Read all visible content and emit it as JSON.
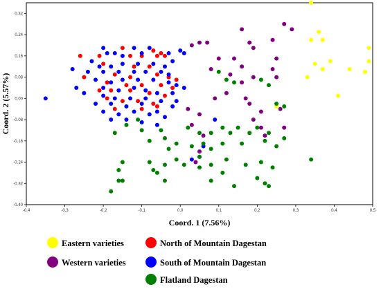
{
  "chart_data": {
    "type": "scatter",
    "title": "",
    "xlabel": "Coord. 1 (7.56%)",
    "ylabel": "Coord. 2 (5.57%)",
    "xlim": [
      -0.4,
      0.5
    ],
    "ylim": [
      -0.4,
      0.36
    ],
    "x_ticks": [
      "-0.4",
      "-0.3",
      "-0.2",
      "-0.1",
      "0.0",
      "0.1",
      "0.2",
      "0.3",
      "0.4",
      "0.5"
    ],
    "y_ticks": [
      "0.32",
      "0.24",
      "0.16",
      "0.08",
      "0.00",
      "-0.08",
      "-0.16",
      "-0.24",
      "-0.32",
      "-0.40"
    ],
    "x_tick_values": [
      -0.4,
      -0.3,
      -0.2,
      -0.1,
      0.0,
      0.1,
      0.2,
      0.3,
      0.4,
      0.5
    ],
    "y_tick_values": [
      0.32,
      0.24,
      0.16,
      0.08,
      0.0,
      -0.08,
      -0.16,
      -0.24,
      -0.32,
      -0.4
    ],
    "grid": false,
    "legend_placement": "bottom",
    "series": [
      {
        "name": "Eastern varieties",
        "color": "#ffff00",
        "points": [
          [
            0.34,
            0.36
          ],
          [
            0.36,
            0.25
          ],
          [
            0.34,
            0.22
          ],
          [
            0.37,
            0.22
          ],
          [
            0.49,
            0.19
          ],
          [
            0.39,
            0.14
          ],
          [
            0.35,
            0.13
          ],
          [
            0.49,
            0.14
          ],
          [
            0.44,
            0.11
          ],
          [
            0.48,
            0.1
          ],
          [
            0.37,
            0.11
          ],
          [
            0.33,
            0.08
          ],
          [
            0.41,
            0.01
          ],
          [
            0.25,
            -0.03
          ]
        ]
      },
      {
        "name": "Western varieties",
        "color": "#800080",
        "points": [
          [
            0.27,
            0.28
          ],
          [
            0.16,
            0.26
          ],
          [
            0.24,
            0.22
          ],
          [
            0.29,
            0.26
          ],
          [
            0.18,
            0.21
          ],
          [
            0.19,
            0.19
          ],
          [
            0.07,
            0.21
          ],
          [
            0.03,
            0.2
          ],
          [
            0.05,
            0.21
          ],
          [
            0.14,
            0.15
          ],
          [
            0.1,
            0.15
          ],
          [
            0.16,
            0.12
          ],
          [
            0.25,
            0.15
          ],
          [
            0.08,
            0.11
          ],
          [
            0.13,
            0.09
          ],
          [
            0.19,
            0.08
          ],
          [
            0.24,
            0.11
          ],
          [
            0.25,
            0.08
          ],
          [
            0.16,
            0.06
          ],
          [
            0.12,
            0.02
          ],
          [
            0.17,
            0.0
          ],
          [
            0.09,
            0.0
          ],
          [
            0.18,
            -0.02
          ],
          [
            0.21,
            -0.05
          ],
          [
            0.26,
            -0.04
          ],
          [
            0.05,
            -0.06
          ],
          [
            0.02,
            -0.04
          ],
          [
            0.03,
            -0.1
          ],
          [
            0.19,
            -0.08
          ],
          [
            0.21,
            -0.11
          ],
          [
            0.22,
            -0.14
          ],
          [
            0.27,
            -0.11
          ],
          [
            0.06,
            -0.14
          ],
          [
            0.05,
            -0.2
          ],
          [
            0.04,
            -0.24
          ],
          [
            0.05,
            -0.22
          ]
        ]
      },
      {
        "name": "North of Mountain Dagestan",
        "color": "#ff0000",
        "points": [
          [
            -0.15,
            0.19
          ],
          [
            -0.07,
            0.18
          ],
          [
            -0.05,
            0.17
          ],
          [
            -0.26,
            0.16
          ],
          [
            -0.21,
            0.16
          ],
          [
            -0.13,
            0.16
          ],
          [
            -0.1,
            0.16
          ],
          [
            -0.06,
            0.16
          ],
          [
            -0.04,
            0.16
          ],
          [
            -0.2,
            0.13
          ],
          [
            -0.12,
            0.12
          ],
          [
            -0.08,
            0.12
          ],
          [
            -0.25,
            0.08
          ],
          [
            -0.17,
            0.09
          ],
          [
            -0.13,
            0.08
          ],
          [
            -0.06,
            0.09
          ],
          [
            -0.03,
            0.08
          ],
          [
            -0.01,
            0.07
          ],
          [
            -0.19,
            0.06
          ],
          [
            -0.14,
            0.05
          ],
          [
            -0.1,
            0.05
          ],
          [
            -0.05,
            0.05
          ],
          [
            -0.02,
            0.04
          ],
          [
            -0.21,
            0.03
          ],
          [
            -0.18,
            0.03
          ],
          [
            -0.13,
            0.03
          ],
          [
            -0.08,
            0.02
          ],
          [
            -0.04,
            0.01
          ],
          [
            -0.19,
            0.0
          ],
          [
            -0.15,
            -0.01
          ],
          [
            -0.11,
            -0.01
          ],
          [
            -0.07,
            -0.02
          ],
          [
            -0.1,
            -0.04
          ],
          [
            -0.06,
            -0.03
          ],
          [
            -0.17,
            -0.04
          ]
        ]
      },
      {
        "name": "South of Mountain Dagestan",
        "color": "#0000ff",
        "points": [
          [
            -0.2,
            0.19
          ],
          [
            -0.19,
            0.17
          ],
          [
            -0.17,
            0.17
          ],
          [
            -0.15,
            0.16
          ],
          [
            -0.12,
            0.19
          ],
          [
            -0.1,
            0.17
          ],
          [
            -0.08,
            0.19
          ],
          [
            -0.03,
            0.17
          ],
          [
            0.01,
            0.17
          ],
          [
            0.0,
            0.18
          ],
          [
            -0.23,
            0.14
          ],
          [
            -0.21,
            0.12
          ],
          [
            -0.18,
            0.12
          ],
          [
            -0.15,
            0.13
          ],
          [
            -0.11,
            0.13
          ],
          [
            -0.07,
            0.13
          ],
          [
            -0.04,
            0.12
          ],
          [
            -0.02,
            0.14
          ],
          [
            -0.28,
            0.11
          ],
          [
            -0.24,
            0.1
          ],
          [
            -0.2,
            0.1
          ],
          [
            -0.16,
            0.1
          ],
          [
            -0.12,
            0.1
          ],
          [
            -0.09,
            0.1
          ],
          [
            -0.05,
            0.1
          ],
          [
            -0.03,
            0.09
          ],
          [
            -0.22,
            0.07
          ],
          [
            -0.18,
            0.06
          ],
          [
            -0.15,
            0.07
          ],
          [
            -0.11,
            0.07
          ],
          [
            -0.07,
            0.07
          ],
          [
            -0.03,
            0.06
          ],
          [
            -0.01,
            0.05
          ],
          [
            0.01,
            0.04
          ],
          [
            -0.27,
            0.04
          ],
          [
            -0.25,
            0.02
          ],
          [
            -0.2,
            0.04
          ],
          [
            -0.16,
            0.03
          ],
          [
            -0.12,
            0.04
          ],
          [
            -0.09,
            0.03
          ],
          [
            -0.06,
            0.02
          ],
          [
            -0.02,
            0.02
          ],
          [
            -0.2,
            0.01
          ],
          [
            -0.17,
            0.0
          ],
          [
            -0.13,
            0.0
          ],
          [
            -0.09,
            0.0
          ],
          [
            -0.05,
            -0.01
          ],
          [
            -0.01,
            -0.01
          ],
          [
            -0.22,
            -0.02
          ],
          [
            -0.18,
            -0.02
          ],
          [
            -0.14,
            -0.03
          ],
          [
            -0.1,
            -0.02
          ],
          [
            -0.06,
            -0.05
          ],
          [
            -0.02,
            -0.03
          ],
          [
            -0.2,
            -0.05
          ],
          [
            -0.16,
            -0.06
          ],
          [
            -0.12,
            -0.05
          ],
          [
            -0.08,
            -0.06
          ],
          [
            -0.04,
            -0.07
          ],
          [
            -0.18,
            -0.08
          ],
          [
            -0.14,
            -0.08
          ],
          [
            -0.1,
            -0.09
          ],
          [
            -0.06,
            -0.1
          ],
          [
            -0.35,
            0.0
          ],
          [
            0.09,
            -0.08
          ],
          [
            0.03,
            -0.23
          ],
          [
            0.06,
            -0.18
          ]
        ]
      },
      {
        "name": "Flatland Dagestan",
        "color": "#008000",
        "points": [
          [
            0.1,
            0.1
          ],
          [
            0.12,
            0.07
          ],
          [
            0.14,
            0.06
          ],
          [
            0.21,
            0.07
          ],
          [
            0.23,
            0.05
          ],
          [
            0.25,
            -0.02
          ],
          [
            0.27,
            -0.03
          ],
          [
            -0.14,
            -0.1
          ],
          [
            -0.11,
            -0.08
          ],
          [
            -0.17,
            -0.13
          ],
          [
            -0.1,
            -0.12
          ],
          [
            -0.05,
            -0.12
          ],
          [
            -0.08,
            -0.16
          ],
          [
            -0.04,
            -0.15
          ],
          [
            0.02,
            -0.11
          ],
          [
            0.05,
            -0.13
          ],
          [
            0.08,
            -0.13
          ],
          [
            0.11,
            -0.11
          ],
          [
            0.13,
            -0.13
          ],
          [
            0.15,
            -0.11
          ],
          [
            0.18,
            -0.13
          ],
          [
            0.2,
            -0.11
          ],
          [
            0.23,
            -0.13
          ],
          [
            -0.01,
            -0.17
          ],
          [
            -0.03,
            -0.19
          ],
          [
            0.03,
            -0.18
          ],
          [
            0.06,
            -0.17
          ],
          [
            0.08,
            -0.19
          ],
          [
            0.11,
            -0.17
          ],
          [
            0.16,
            -0.17
          ],
          [
            0.22,
            -0.16
          ],
          [
            0.25,
            -0.18
          ],
          [
            0.27,
            -0.15
          ],
          [
            -0.15,
            -0.24
          ],
          [
            -0.08,
            -0.24
          ],
          [
            -0.04,
            -0.25
          ],
          [
            -0.01,
            -0.23
          ],
          [
            0.01,
            -0.25
          ],
          [
            0.05,
            -0.26
          ],
          [
            0.08,
            -0.25
          ],
          [
            0.12,
            -0.23
          ],
          [
            0.17,
            -0.25
          ],
          [
            0.21,
            -0.24
          ],
          [
            0.24,
            -0.26
          ],
          [
            -0.16,
            -0.27
          ],
          [
            -0.07,
            -0.27
          ],
          [
            -0.04,
            -0.31
          ],
          [
            -0.16,
            -0.31
          ],
          [
            -0.15,
            -0.31
          ],
          [
            -0.18,
            -0.35
          ],
          [
            0.11,
            -0.28
          ],
          [
            0.08,
            -0.31
          ],
          [
            0.2,
            -0.3
          ],
          [
            0.22,
            -0.32
          ],
          [
            0.14,
            -0.33
          ],
          [
            0.34,
            -0.23
          ],
          [
            -0.06,
            -0.28
          ],
          [
            0.23,
            -0.33
          ],
          [
            0.05,
            -0.22
          ]
        ]
      }
    ]
  }
}
